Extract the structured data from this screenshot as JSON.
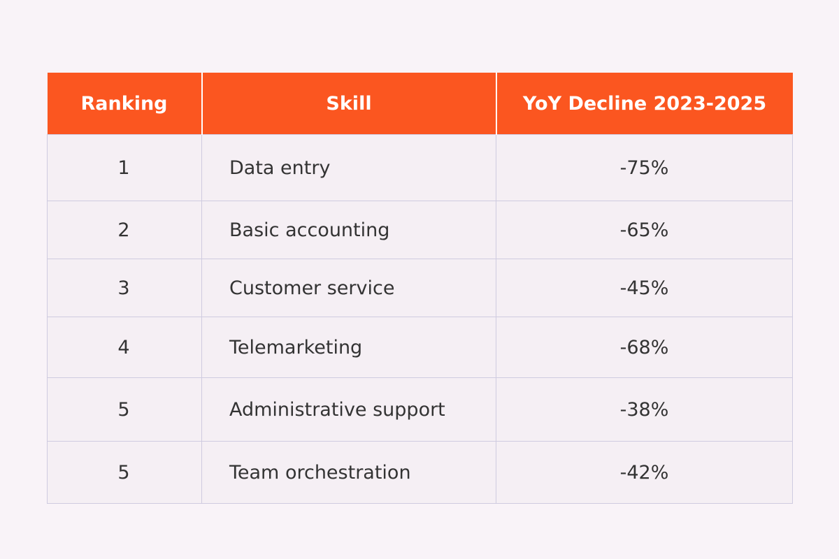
{
  "table": {
    "headers": {
      "ranking": "Ranking",
      "skill": "Skill",
      "decline": "YoY Decline 2023-2025"
    },
    "rows": [
      {
        "ranking": "1",
        "skill": "Data entry",
        "decline": "-75%"
      },
      {
        "ranking": "2",
        "skill": "Basic accounting",
        "decline": "-65%"
      },
      {
        "ranking": "3",
        "skill": "Customer service",
        "decline": "-45%"
      },
      {
        "ranking": "4",
        "skill": "Telemarketing",
        "decline": "-68%"
      },
      {
        "ranking": "5",
        "skill": "Administrative support",
        "decline": "-38%"
      },
      {
        "ranking": "5",
        "skill": "Team orchestration",
        "decline": "-42%"
      }
    ]
  },
  "colors": {
    "header_bg": "#fb5620",
    "header_text": "#ffffff",
    "page_bg": "#f9f3f8",
    "cell_text": "#333333",
    "grid_line": "#cfcbe0"
  }
}
